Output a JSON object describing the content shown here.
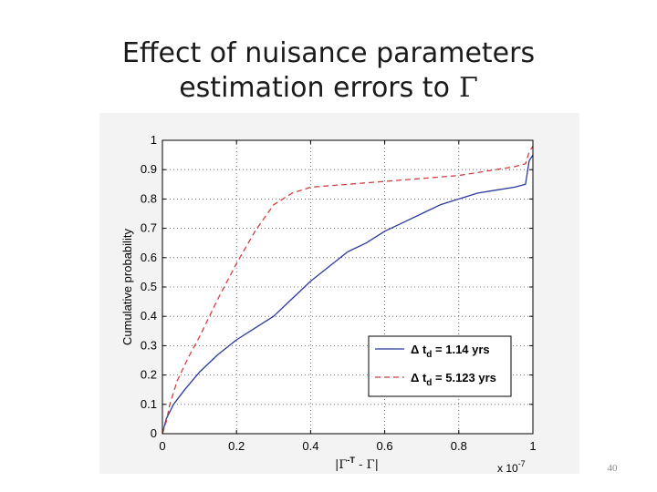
{
  "slide": {
    "title_line1": "Effect of nuisance parameters",
    "title_line2": "estimation errors to",
    "title_symbol": "Γ",
    "page_number": "40"
  },
  "chart_data": {
    "type": "line",
    "title": "",
    "xlabel": "|Γ^-T - Γ|",
    "ylabel": "Cumulative probability",
    "x_multiplier": "x 10^-7",
    "xlim": [
      0,
      1
    ],
    "ylim": [
      0,
      1
    ],
    "xticks": [
      0,
      0.2,
      0.4,
      0.6,
      0.8,
      1
    ],
    "yticks": [
      0,
      0.1,
      0.2,
      0.3,
      0.4,
      0.5,
      0.6,
      0.7,
      0.8,
      0.9,
      1
    ],
    "grid": true,
    "legend_position": "bottom-right",
    "series": [
      {
        "name": "Δ t_d = 1.14 yrs",
        "color": "#2a3a9c",
        "style": "solid",
        "x": [
          0,
          0.01,
          0.03,
          0.06,
          0.1,
          0.15,
          0.2,
          0.25,
          0.3,
          0.35,
          0.4,
          0.45,
          0.5,
          0.55,
          0.6,
          0.65,
          0.7,
          0.75,
          0.8,
          0.85,
          0.9,
          0.95,
          0.98,
          0.99,
          1.0
        ],
        "y": [
          0,
          0.05,
          0.1,
          0.15,
          0.21,
          0.27,
          0.32,
          0.36,
          0.4,
          0.46,
          0.52,
          0.57,
          0.62,
          0.65,
          0.69,
          0.72,
          0.75,
          0.78,
          0.8,
          0.82,
          0.83,
          0.84,
          0.85,
          0.93,
          0.95
        ]
      },
      {
        "name": "Δ t_d = 5.123 yrs",
        "color": "#d04040",
        "style": "dashed",
        "x": [
          0,
          0.01,
          0.02,
          0.04,
          0.07,
          0.1,
          0.15,
          0.2,
          0.25,
          0.3,
          0.35,
          0.4,
          0.45,
          0.5,
          0.55,
          0.6,
          0.7,
          0.8,
          0.85,
          0.9,
          0.95,
          0.98,
          0.99,
          1.0
        ],
        "y": [
          0,
          0.04,
          0.1,
          0.18,
          0.26,
          0.33,
          0.46,
          0.58,
          0.69,
          0.78,
          0.82,
          0.84,
          0.845,
          0.85,
          0.855,
          0.86,
          0.87,
          0.88,
          0.89,
          0.9,
          0.91,
          0.92,
          0.96,
          0.98
        ]
      }
    ]
  }
}
